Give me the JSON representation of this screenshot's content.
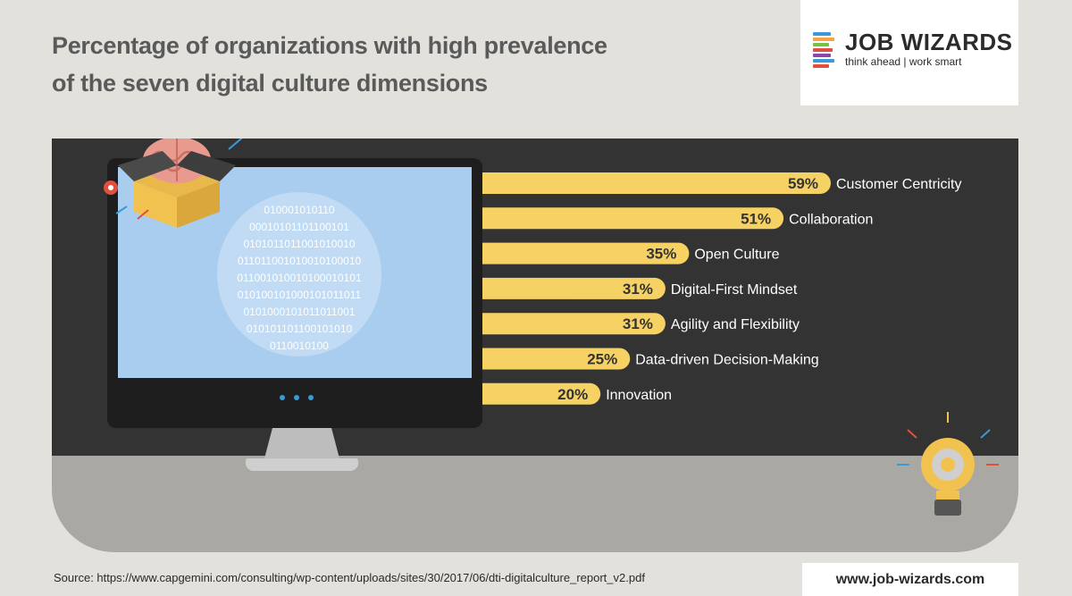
{
  "title": "Percentage of organizations with high prevalence of the seven digital culture dimensions",
  "logo": {
    "name": "JOB WIZARDS",
    "tagline": "think ahead | work smart"
  },
  "colors": {
    "bar": "#f6d164",
    "bar_text": "#333333",
    "label": "#ffffff",
    "dark_panel": "#333333",
    "floor": "#aaa8a3",
    "screen": "#a8cdee"
  },
  "chart_data": {
    "type": "bar",
    "orientation": "horizontal",
    "categories": [
      "Customer Centricity",
      "Collaboration",
      "Open Culture",
      "Digital-First Mindset",
      "Agility and Flexibility",
      "Data-driven Decision-Making",
      "Innovation"
    ],
    "values": [
      59,
      51,
      35,
      31,
      31,
      25,
      20
    ],
    "value_labels": [
      "59%",
      "51%",
      "35%",
      "31%",
      "31%",
      "25%",
      "20%"
    ],
    "unit": "%",
    "xlim": [
      0,
      59
    ]
  },
  "binary_lines": [
    "010001010110",
    "00010101101100101",
    "0101011011001010010",
    "011011001010010100010",
    "011001010010100010101",
    "010100101000101011011",
    "0101000101011011001",
    "010101101100101010",
    "0110010100"
  ],
  "source": "Source: https://www.capgemini.com/consulting/wp-content/uploads/sites/30/2017/06/dti-digitalculture_report_v2.pdf",
  "website": "www.job-wizards.com"
}
